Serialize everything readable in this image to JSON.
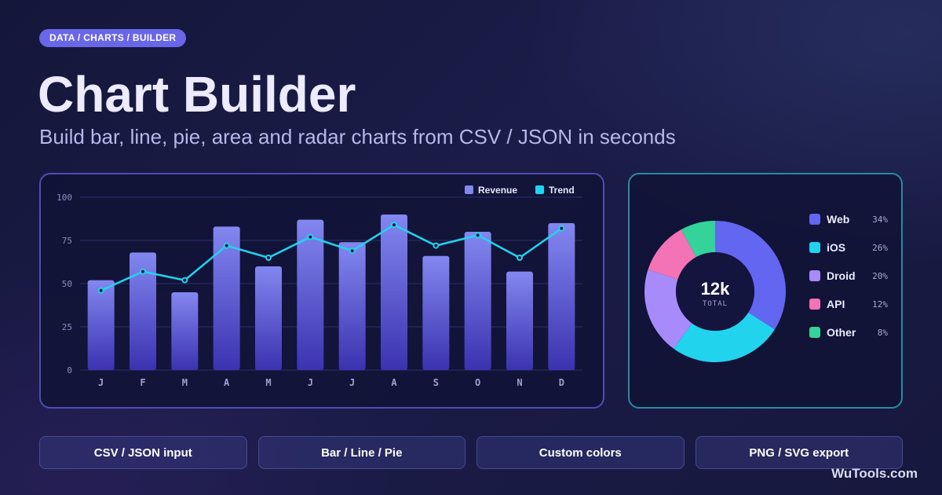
{
  "breadcrumb": "DATA / CHARTS / BUILDER",
  "title": "Chart Builder",
  "subtitle": "Build bar, line, pie, area and radar charts from CSV / JSON in seconds",
  "features": [
    "CSV / JSON input",
    "Bar / Line / Pie",
    "Custom colors",
    "PNG / SVG export"
  ],
  "brand": "WuTools.com",
  "colors": {
    "accent": "#6a66e8",
    "bar_top": "#8387f0",
    "bar_bottom": "#3b32b0",
    "trend": "#22d3ee"
  },
  "chart_data": [
    {
      "type": "bar",
      "categories": [
        "J",
        "F",
        "M",
        "A",
        "M",
        "J",
        "J",
        "A",
        "S",
        "O",
        "N",
        "D"
      ],
      "series": [
        {
          "name": "Revenue",
          "type": "bar",
          "color": "#8387f0",
          "values": [
            52,
            68,
            45,
            83,
            60,
            87,
            74,
            90,
            66,
            80,
            57,
            85
          ]
        },
        {
          "name": "Trend",
          "type": "line",
          "color": "#22d3ee",
          "values": [
            46,
            57,
            52,
            72,
            65,
            77,
            69,
            84,
            72,
            78,
            65,
            82
          ]
        }
      ],
      "yticks": [
        0,
        25,
        50,
        75,
        100
      ],
      "ylim": [
        0,
        100
      ],
      "grid": true,
      "legend_position": "top-right"
    },
    {
      "type": "pie",
      "donut": true,
      "center_value": "12k",
      "center_label": "TOTAL",
      "slices": [
        {
          "label": "Web",
          "value": 34,
          "display": "34%",
          "color": "#6366f1"
        },
        {
          "label": "iOS",
          "value": 26,
          "display": "26%",
          "color": "#22d3ee"
        },
        {
          "label": "Droid",
          "value": 20,
          "display": "20%",
          "color": "#a78bfa"
        },
        {
          "label": "API",
          "value": 12,
          "display": "12%",
          "color": "#f472b6"
        },
        {
          "label": "Other",
          "value": 8,
          "display": "8%",
          "color": "#34d399"
        }
      ],
      "legend_position": "right"
    }
  ]
}
